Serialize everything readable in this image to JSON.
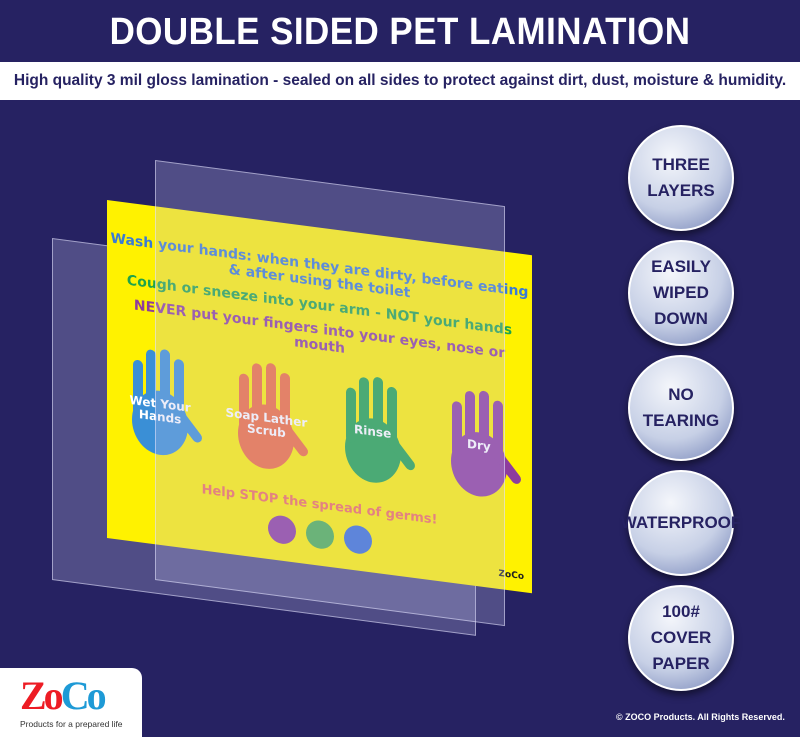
{
  "header": {
    "title": "DOUBLE SIDED PET LAMINATION",
    "subtitle": "High quality 3 mil gloss lamination - sealed on all sides to protect against dirt, dust, moisture & humidity."
  },
  "poster": {
    "line1": "Wash your hands: when they are dirty, before eating & after using the toilet",
    "line2": "Cough or sneeze into your arm - NOT your hands",
    "line3": "NEVER put your fingers into your eyes, nose or mouth",
    "hands": [
      {
        "label": "Wet Your Hands",
        "color": "#3a8fd6"
      },
      {
        "label": "Soap Lather Scrub",
        "color": "#f26b3a"
      },
      {
        "label": "Rinse",
        "color": "#1fa34a"
      },
      {
        "label": "Dry",
        "color": "#8e3c9e"
      }
    ],
    "help": "Help STOP the spread of germs!",
    "germ_colors": [
      "#8e3c9e",
      "#4caf50",
      "#3a6fd6"
    ],
    "logo": "ZoCo"
  },
  "badges": [
    "THREE\nLAYERS",
    "EASILY\nWIPED DOWN",
    "NO\nTEARING",
    "WATERPROOF",
    "100#\nCOVER\nPAPER"
  ],
  "logo": {
    "zo": "Zo",
    "co": "Co",
    "tagline": "Products for a prepared life",
    "zo_color": "#ed1c24",
    "co_color": "#1e9ad6"
  },
  "footer": {
    "copyright": "© ZOCO Products. All Rights Reserved."
  }
}
